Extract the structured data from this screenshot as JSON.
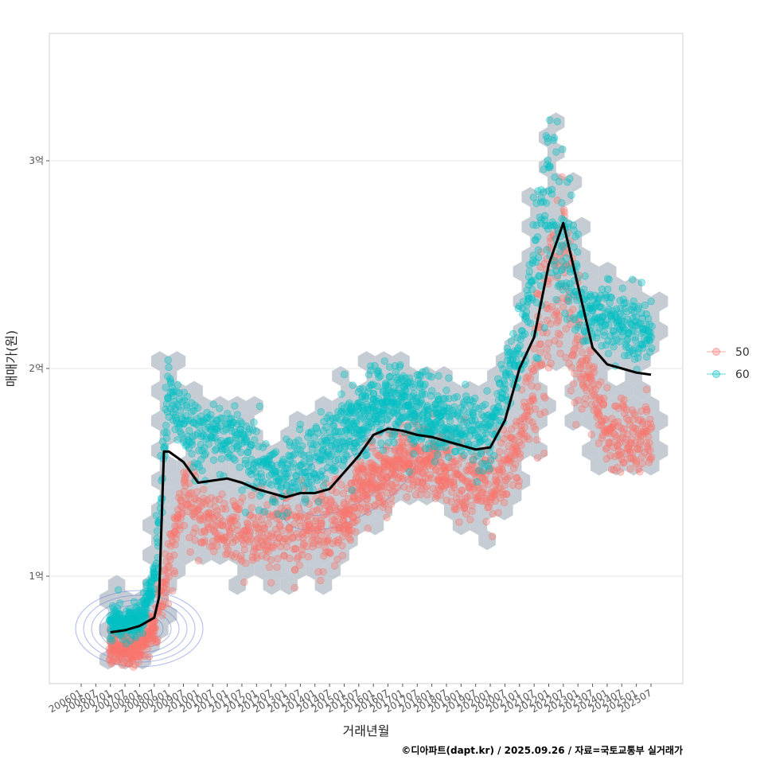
{
  "chart_data": {
    "type": "scatter",
    "xlabel": "거래년월",
    "ylabel": "매매가(원)",
    "caption": "©디아파트(dapt.kr) / 2025.09.26 / 자료=국토교통부 실거래가",
    "x_ticks": [
      "200601",
      "200607",
      "200701",
      "200707",
      "200801",
      "200807",
      "200901",
      "200907",
      "201001",
      "201007",
      "201101",
      "201107",
      "201201",
      "201207",
      "201301",
      "201307",
      "201401",
      "201407",
      "201501",
      "201507",
      "201601",
      "201607",
      "201701",
      "201707",
      "201801",
      "201807",
      "201901",
      "201907",
      "202001",
      "202007",
      "202101",
      "202107",
      "202201",
      "202207",
      "202301",
      "202307",
      "202401",
      "202407",
      "202501",
      "202507"
    ],
    "y_ticks": [
      {
        "value": 1,
        "label": "1억"
      },
      {
        "value": 2,
        "label": "2억"
      },
      {
        "value": 3,
        "label": "3억"
      }
    ],
    "xlim": [
      "200601",
      "202509"
    ],
    "ylim": [
      0.5,
      3.6
    ],
    "y_unit": "억",
    "grid": "horizontal major lines",
    "legend_position": "right",
    "colors": {
      "series_50": "#F8766D",
      "series_60": "#00BFC4",
      "hex": "#BCC3CB",
      "trend": "#000000",
      "contour": "#6A82D8"
    },
    "series": [
      {
        "name": "50",
        "color": "#F8766D",
        "anchors": [
          [
            "200701",
            0.65
          ],
          [
            "200801",
            0.66
          ],
          [
            "200807",
            0.75
          ],
          [
            "200901",
            1.05
          ],
          [
            "200907",
            1.4
          ],
          [
            "201001",
            1.25
          ],
          [
            "201101",
            1.25
          ],
          [
            "201201",
            1.2
          ],
          [
            "201301",
            1.22
          ],
          [
            "201401",
            1.22
          ],
          [
            "201501",
            1.3
          ],
          [
            "201601",
            1.48
          ],
          [
            "201701",
            1.55
          ],
          [
            "201801",
            1.55
          ],
          [
            "201901",
            1.45
          ],
          [
            "202001",
            1.45
          ],
          [
            "202101",
            1.6
          ],
          [
            "202201",
            2.35
          ],
          [
            "202207",
            2.45
          ],
          [
            "202301",
            2.05
          ],
          [
            "202401",
            1.7
          ],
          [
            "202501",
            1.65
          ],
          [
            "202507",
            1.7
          ]
        ]
      },
      {
        "name": "60",
        "color": "#00BFC4",
        "anchors": [
          [
            "200701",
            0.78
          ],
          [
            "200801",
            0.78
          ],
          [
            "200807",
            1.0
          ],
          [
            "200901",
            1.9
          ],
          [
            "200907",
            1.75
          ],
          [
            "201001",
            1.65
          ],
          [
            "201101",
            1.7
          ],
          [
            "201201",
            1.55
          ],
          [
            "201301",
            1.5
          ],
          [
            "201401",
            1.55
          ],
          [
            "201501",
            1.7
          ],
          [
            "201601",
            1.82
          ],
          [
            "201701",
            1.85
          ],
          [
            "201801",
            1.75
          ],
          [
            "201901",
            1.72
          ],
          [
            "202001",
            1.72
          ],
          [
            "202101",
            2.1
          ],
          [
            "202201",
            2.8
          ],
          [
            "202207",
            2.6
          ],
          [
            "202301",
            2.3
          ],
          [
            "202401",
            2.25
          ],
          [
            "202501",
            2.2
          ],
          [
            "202507",
            2.15
          ]
        ]
      }
    ],
    "trend": [
      [
        "200701",
        0.73
      ],
      [
        "200707",
        0.74
      ],
      [
        "200801",
        0.76
      ],
      [
        "200807",
        0.8
      ],
      [
        "200809",
        0.9
      ],
      [
        "200811",
        1.6
      ],
      [
        "200901",
        1.6
      ],
      [
        "200907",
        1.55
      ],
      [
        "201001",
        1.45
      ],
      [
        "201007",
        1.46
      ],
      [
        "201101",
        1.47
      ],
      [
        "201107",
        1.45
      ],
      [
        "201201",
        1.42
      ],
      [
        "201207",
        1.4
      ],
      [
        "201301",
        1.38
      ],
      [
        "201307",
        1.4
      ],
      [
        "201401",
        1.4
      ],
      [
        "201407",
        1.42
      ],
      [
        "201501",
        1.5
      ],
      [
        "201507",
        1.58
      ],
      [
        "201601",
        1.68
      ],
      [
        "201607",
        1.71
      ],
      [
        "201701",
        1.7
      ],
      [
        "201707",
        1.68
      ],
      [
        "201801",
        1.67
      ],
      [
        "201807",
        1.65
      ],
      [
        "201901",
        1.63
      ],
      [
        "201907",
        1.61
      ],
      [
        "202001",
        1.62
      ],
      [
        "202007",
        1.75
      ],
      [
        "202101",
        2.0
      ],
      [
        "202107",
        2.15
      ],
      [
        "202201",
        2.5
      ],
      [
        "202207",
        2.7
      ],
      [
        "202301",
        2.4
      ],
      [
        "202307",
        2.1
      ],
      [
        "202401",
        2.02
      ],
      [
        "202407",
        2.0
      ],
      [
        "202501",
        1.98
      ],
      [
        "202507",
        1.97
      ]
    ]
  }
}
